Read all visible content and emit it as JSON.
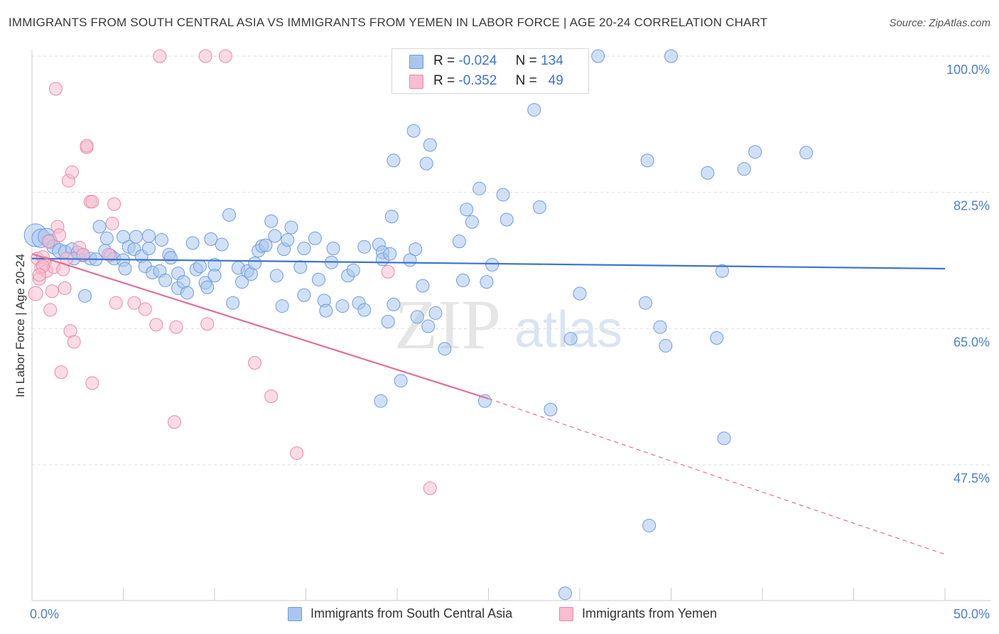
{
  "title": "IMMIGRANTS FROM SOUTH CENTRAL ASIA VS IMMIGRANTS FROM YEMEN IN LABOR FORCE | AGE 20-24 CORRELATION CHART",
  "source": "Source: ZipAtlas.com",
  "watermark": {
    "zip": "ZIP",
    "atlas": "atlas"
  },
  "legend": {
    "rows": [
      {
        "r_label": "R =",
        "r_value": "-0.024",
        "n_label": "N =",
        "n_value": "134",
        "color": "#a9c6ef",
        "border": "#6d9de0"
      },
      {
        "r_label": "R =",
        "r_value": "-0.352",
        "n_label": "N =",
        "n_value": "49",
        "color": "#f7bdd0",
        "border": "#e88aa9"
      }
    ]
  },
  "bottom_legend": [
    {
      "label": "Immigrants from South Central Asia",
      "color": "#a9c6ef",
      "border": "#6d9de0"
    },
    {
      "label": "Immigrants from Yemen",
      "color": "#f7bdd0",
      "border": "#e88aa9"
    }
  ],
  "chart_data": {
    "type": "scatter",
    "ylabel": "In Labor Force | Age 20-24",
    "xlim": [
      0,
      50
    ],
    "ylim": [
      30,
      101.5
    ],
    "x_tick_labels": [
      "0.0%",
      "50.0%"
    ],
    "y_ticks": [
      {
        "value": 100.0,
        "label": "100.0%"
      },
      {
        "value": 82.5,
        "label": "82.5%"
      },
      {
        "value": 65.0,
        "label": "65.0%"
      },
      {
        "value": 47.5,
        "label": "47.5%"
      }
    ],
    "grid": true,
    "series": [
      {
        "name": "Immigrants from South Central Asia",
        "color": "#a9c6ef",
        "stroke": "#6d9de0",
        "trend": {
          "x": [
            0,
            50
          ],
          "y": [
            74.0,
            72.7
          ],
          "color": "#3f74c8"
        },
        "points": [
          [
            0.2,
            77.0,
            16
          ],
          [
            0.5,
            76.6,
            13
          ],
          [
            0.8,
            76.8,
            12
          ],
          [
            1.0,
            76.2,
            10
          ],
          [
            1.2,
            75.5,
            10
          ],
          [
            1.5,
            75.0,
            10
          ],
          [
            1.8,
            74.9,
            9
          ],
          [
            2.2,
            75.2,
            9
          ],
          [
            2.5,
            74.8,
            9
          ],
          [
            2.8,
            74.4,
            9
          ],
          [
            3.2,
            74.0,
            9
          ],
          [
            3.5,
            73.9,
            9
          ],
          [
            2.3,
            74.0,
            9
          ],
          [
            2.9,
            69.2,
            9
          ],
          [
            3.7,
            78.1,
            9
          ],
          [
            4.0,
            75.0,
            9
          ],
          [
            4.1,
            76.6,
            9
          ],
          [
            4.3,
            74.4,
            9
          ],
          [
            4.5,
            74.0,
            9
          ],
          [
            5.0,
            73.8,
            9
          ],
          [
            5.1,
            72.7,
            9
          ],
          [
            5.0,
            76.8,
            9
          ],
          [
            5.3,
            75.5,
            9
          ],
          [
            5.6,
            75.2,
            9
          ],
          [
            5.7,
            76.8,
            9
          ],
          [
            6.0,
            74.3,
            9
          ],
          [
            6.2,
            73.0,
            9
          ],
          [
            6.4,
            75.3,
            9
          ],
          [
            6.4,
            76.9,
            9
          ],
          [
            6.6,
            72.2,
            9
          ],
          [
            7.0,
            72.4,
            9
          ],
          [
            7.1,
            76.4,
            9
          ],
          [
            7.3,
            71.2,
            9
          ],
          [
            7.5,
            74.5,
            9
          ],
          [
            7.6,
            74.1,
            9
          ],
          [
            8.0,
            70.2,
            9
          ],
          [
            8.0,
            72.1,
            9
          ],
          [
            8.3,
            71.0,
            9
          ],
          [
            8.5,
            69.6,
            9
          ],
          [
            8.8,
            76.0,
            9
          ],
          [
            9.0,
            72.6,
            9
          ],
          [
            9.2,
            73.0,
            9
          ],
          [
            9.5,
            70.9,
            9
          ],
          [
            9.6,
            70.3,
            9
          ],
          [
            9.8,
            76.5,
            9
          ],
          [
            10.0,
            73.2,
            9
          ],
          [
            10.0,
            71.8,
            9
          ],
          [
            10.4,
            75.8,
            9
          ],
          [
            10.8,
            79.6,
            9
          ],
          [
            11.0,
            68.3,
            9
          ],
          [
            11.3,
            72.8,
            9
          ],
          [
            11.5,
            71.0,
            9
          ],
          [
            11.8,
            72.4,
            9
          ],
          [
            12.0,
            72.0,
            9
          ],
          [
            12.2,
            73.4,
            9
          ],
          [
            12.4,
            75.0,
            9
          ],
          [
            12.6,
            75.6,
            9
          ],
          [
            12.8,
            75.7,
            9
          ],
          [
            13.1,
            78.8,
            9
          ],
          [
            13.3,
            76.9,
            9
          ],
          [
            13.4,
            71.8,
            9
          ],
          [
            13.7,
            67.9,
            9
          ],
          [
            13.8,
            75.2,
            9
          ],
          [
            14.0,
            76.4,
            9
          ],
          [
            14.2,
            78.0,
            9
          ],
          [
            14.7,
            72.9,
            9
          ],
          [
            14.9,
            69.3,
            9
          ],
          [
            14.9,
            75.3,
            9
          ],
          [
            15.5,
            76.6,
            9
          ],
          [
            15.7,
            71.3,
            9
          ],
          [
            16.0,
            68.6,
            9
          ],
          [
            16.1,
            67.3,
            9
          ],
          [
            16.4,
            73.5,
            9
          ],
          [
            16.5,
            75.3,
            9
          ],
          [
            17.0,
            67.9,
            9
          ],
          [
            17.3,
            71.8,
            9
          ],
          [
            17.6,
            72.5,
            9
          ],
          [
            17.9,
            68.3,
            9
          ],
          [
            18.2,
            67.4,
            9
          ],
          [
            18.2,
            75.5,
            9
          ],
          [
            19.0,
            75.8,
            9
          ],
          [
            19.2,
            74.8,
            9
          ],
          [
            19.1,
            55.7,
            9
          ],
          [
            19.2,
            73.9,
            9
          ],
          [
            19.6,
            74.6,
            9
          ],
          [
            19.5,
            65.9,
            9
          ],
          [
            19.8,
            68.1,
            9
          ],
          [
            19.7,
            79.4,
            9
          ],
          [
            19.8,
            86.6,
            9
          ],
          [
            20.2,
            58.3,
            9
          ],
          [
            20.7,
            73.8,
            9
          ],
          [
            20.9,
            90.4,
            9
          ],
          [
            21.0,
            75.2,
            9
          ],
          [
            21.1,
            66.5,
            9
          ],
          [
            21.4,
            70.5,
            9
          ],
          [
            21.6,
            86.2,
            9
          ],
          [
            21.8,
            88.6,
            9
          ],
          [
            21.7,
            65.3,
            9
          ],
          [
            22.1,
            67.0,
            9
          ],
          [
            22.6,
            62.4,
            9
          ],
          [
            23.4,
            76.2,
            9
          ],
          [
            23.6,
            71.2,
            9
          ],
          [
            23.8,
            80.3,
            9
          ],
          [
            24.1,
            78.7,
            9
          ],
          [
            24.5,
            83.0,
            9
          ],
          [
            24.8,
            55.7,
            9
          ],
          [
            24.9,
            71.0,
            9
          ],
          [
            25.2,
            73.2,
            9
          ],
          [
            25.8,
            82.2,
            9
          ],
          [
            26.0,
            79.0,
            9
          ],
          [
            27.5,
            93.1,
            9
          ],
          [
            27.8,
            80.6,
            9
          ],
          [
            28.4,
            54.6,
            9
          ],
          [
            29.5,
            63.7,
            9
          ],
          [
            30.0,
            69.5,
            9
          ],
          [
            31.0,
            100.0,
            9
          ],
          [
            33.6,
            68.3,
            9
          ],
          [
            33.7,
            86.6,
            9
          ],
          [
            33.8,
            39.7,
            9
          ],
          [
            34.4,
            65.2,
            9
          ],
          [
            34.7,
            62.8,
            9
          ],
          [
            37.0,
            85.0,
            9
          ],
          [
            37.5,
            63.8,
            9
          ],
          [
            37.8,
            72.4,
            9
          ],
          [
            37.9,
            50.9,
            9
          ],
          [
            39.0,
            85.5,
            9
          ],
          [
            39.6,
            87.7,
            9
          ],
          [
            42.4,
            87.6,
            9
          ],
          [
            35.0,
            100.0,
            9
          ],
          [
            29.2,
            31.0,
            9
          ]
        ]
      },
      {
        "name": "Immigrants from Yemen",
        "color": "#f7bdd0",
        "stroke": "#e88aa9",
        "trend": {
          "x": [
            0,
            25
          ],
          "y": [
            74.6,
            56.0
          ],
          "color": "#e0709a",
          "dash_to": [
            50,
            36.0
          ]
        },
        "points": [
          [
            0.2,
            69.5,
            10
          ],
          [
            0.3,
            74.0,
            9
          ],
          [
            0.4,
            71.4,
            9
          ],
          [
            0.5,
            72.8,
            9
          ],
          [
            0.6,
            74.2,
            9
          ],
          [
            0.7,
            73.4,
            9
          ],
          [
            0.8,
            72.4,
            9
          ],
          [
            0.9,
            76.2,
            9
          ],
          [
            1.0,
            67.4,
            9
          ],
          [
            1.1,
            69.8,
            9
          ],
          [
            1.2,
            72.9,
            9
          ],
          [
            1.3,
            95.8,
            9
          ],
          [
            1.4,
            78.1,
            9
          ],
          [
            1.5,
            77.0,
            9
          ],
          [
            1.6,
            59.4,
            9
          ],
          [
            1.7,
            72.6,
            9
          ],
          [
            1.8,
            70.2,
            9
          ],
          [
            1.9,
            74.0,
            9
          ],
          [
            2.0,
            84.0,
            9
          ],
          [
            2.1,
            64.7,
            9
          ],
          [
            2.2,
            85.1,
            9
          ],
          [
            2.3,
            63.3,
            9
          ],
          [
            2.6,
            75.4,
            9
          ],
          [
            2.8,
            74.5,
            9
          ],
          [
            3.0,
            88.3,
            9
          ],
          [
            3.0,
            88.5,
            9
          ],
          [
            3.2,
            81.3,
            9
          ],
          [
            3.3,
            81.3,
            9
          ],
          [
            3.3,
            58.0,
            9
          ],
          [
            4.2,
            74.5,
            9
          ],
          [
            4.4,
            78.5,
            9
          ],
          [
            4.5,
            81.0,
            9
          ],
          [
            4.6,
            68.3,
            9
          ],
          [
            5.6,
            68.3,
            9
          ],
          [
            6.2,
            67.5,
            9
          ],
          [
            6.8,
            65.5,
            9
          ],
          [
            7.0,
            100.0,
            9
          ],
          [
            7.8,
            53.0,
            9
          ],
          [
            7.9,
            65.2,
            9
          ],
          [
            9.5,
            100.0,
            9
          ],
          [
            9.6,
            65.6,
            9
          ],
          [
            10.6,
            100.0,
            9
          ],
          [
            12.2,
            60.6,
            9
          ],
          [
            13.1,
            56.3,
            9
          ],
          [
            14.5,
            49.0,
            9
          ],
          [
            19.5,
            72.3,
            9
          ],
          [
            21.8,
            44.5,
            9
          ],
          [
            0.6,
            73.0,
            9
          ],
          [
            0.4,
            71.9,
            9
          ]
        ]
      }
    ]
  }
}
